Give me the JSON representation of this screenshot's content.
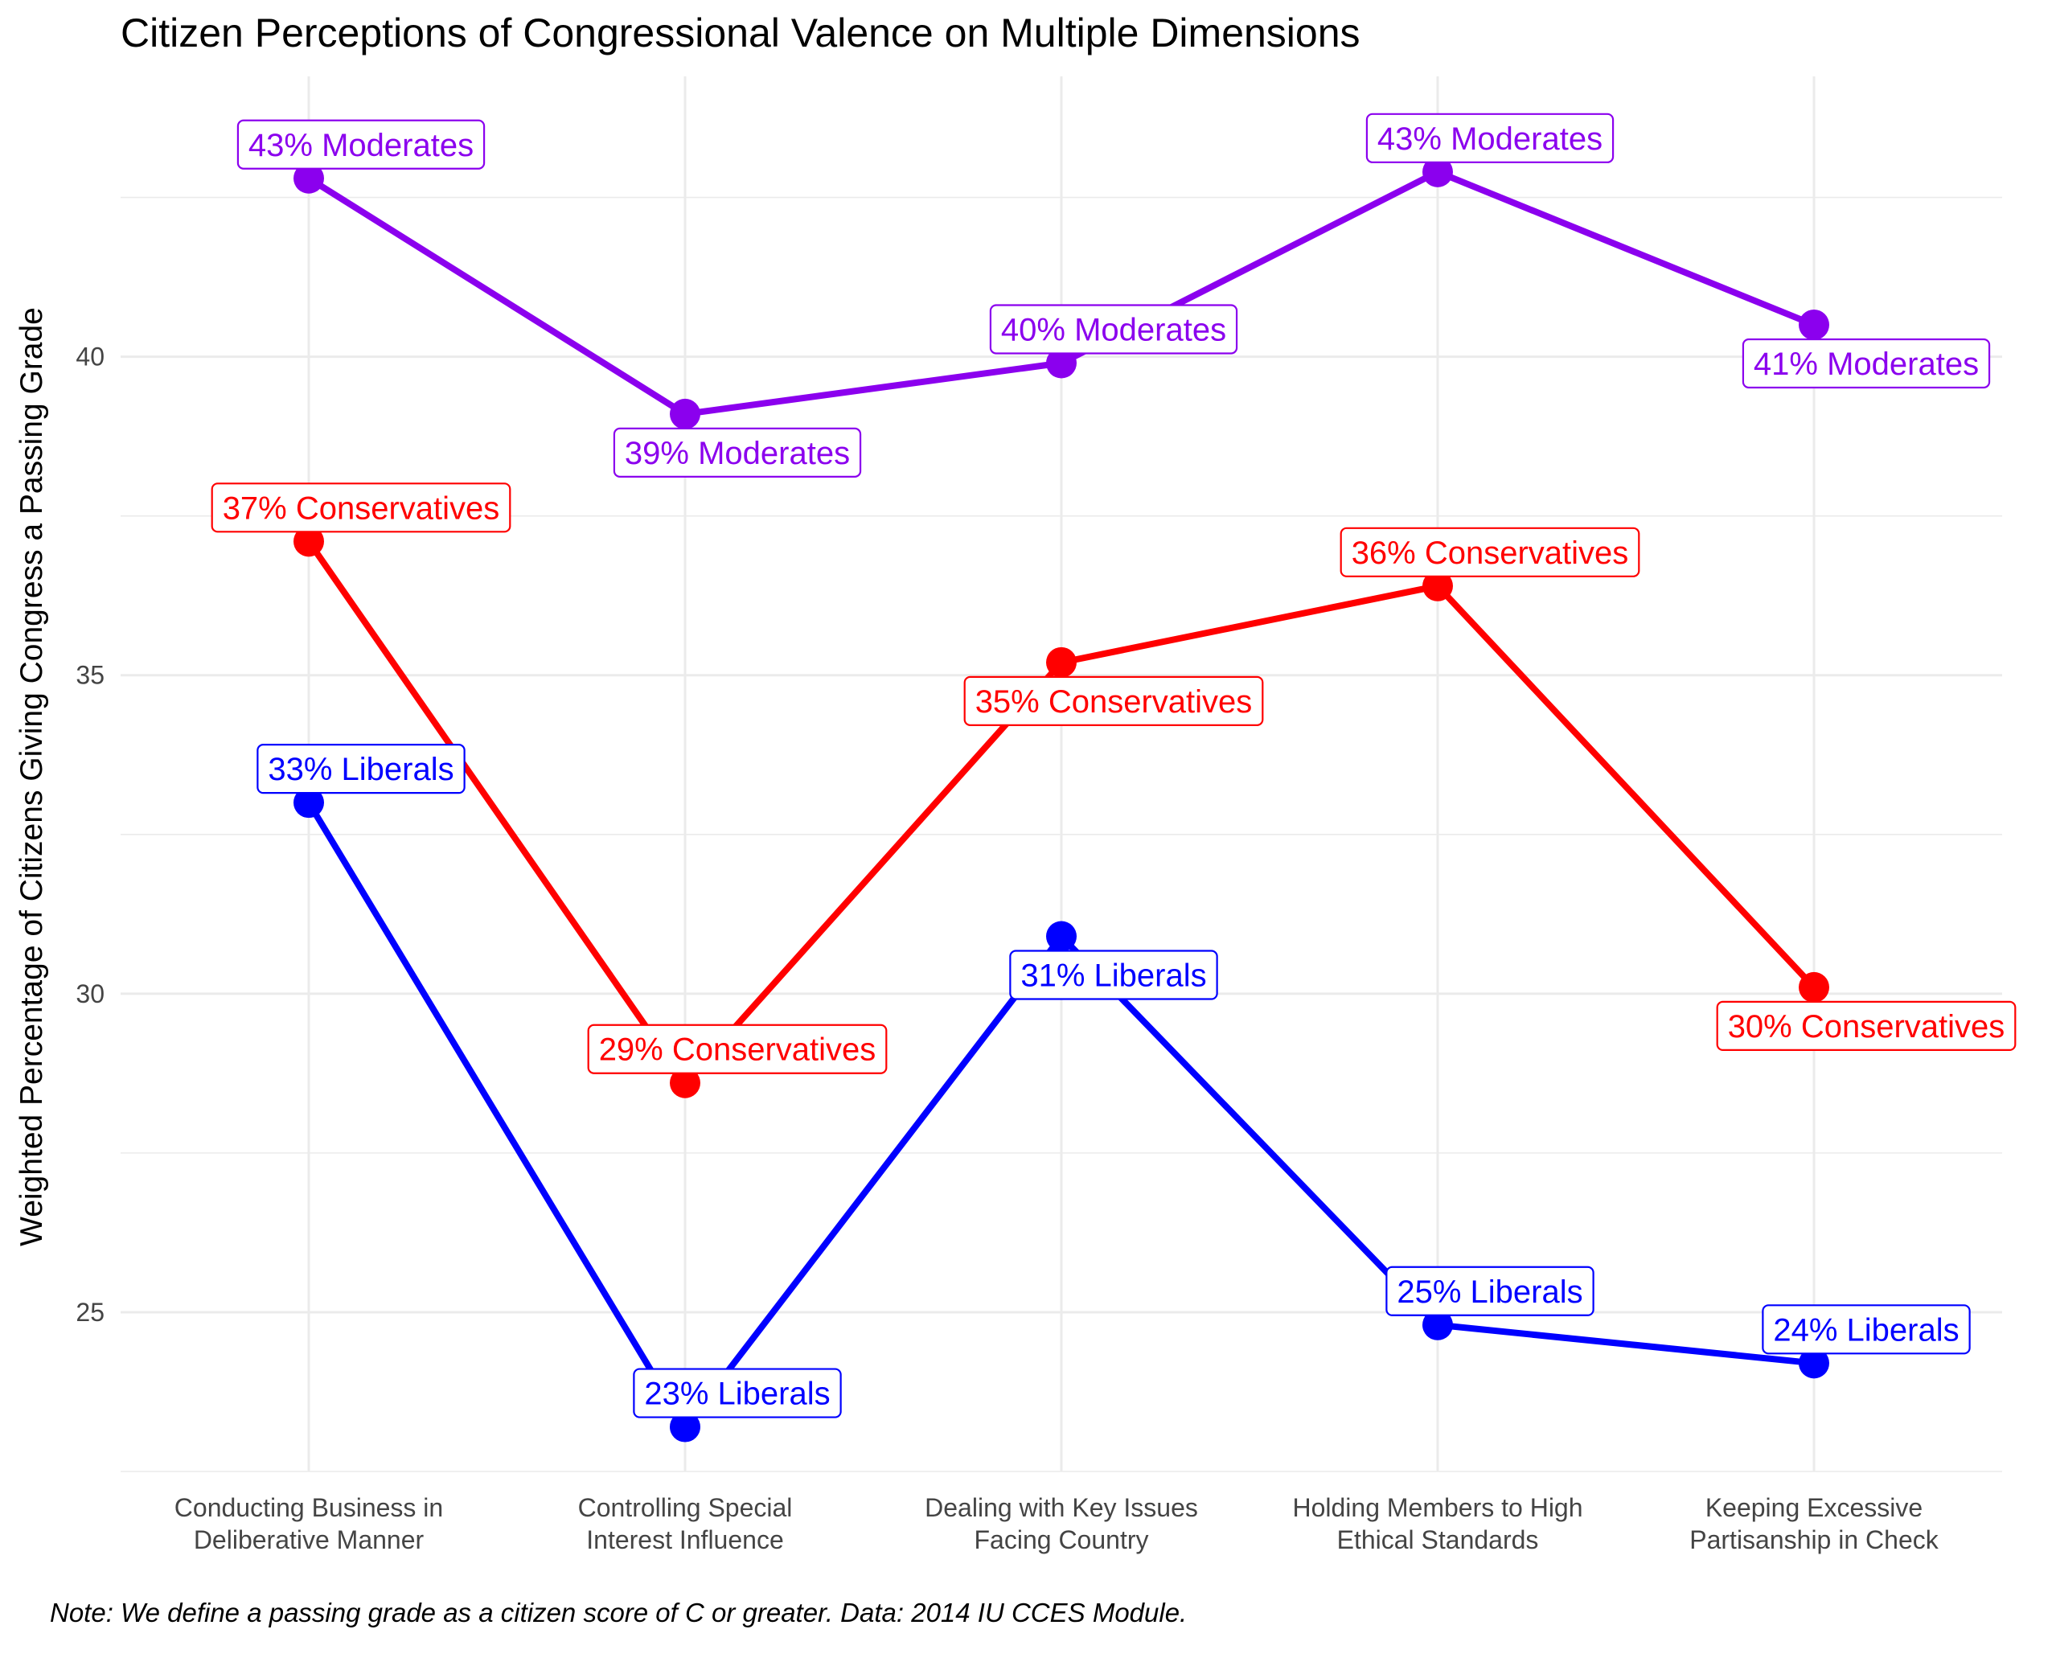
{
  "chart_data": {
    "type": "line",
    "title": "Citizen Perceptions of Congressional Valence on Multiple Dimensions",
    "ylabel": "Weighted Percentage of Citizens Giving Congress a Passing Grade",
    "xlabel": "",
    "caption": "Note: We define a passing grade as a citizen score of C or greater. Data: 2014 IU CCES Module.",
    "categories": [
      [
        "Conducting Business in",
        "Deliberative Manner"
      ],
      [
        "Controlling Special",
        "Interest Influence"
      ],
      [
        "Dealing with Key Issues",
        "Facing Country"
      ],
      [
        "Holding Members to High",
        "Ethical Standards"
      ],
      [
        "Keeping Excessive",
        "Partisanship in Check"
      ]
    ],
    "ylim": [
      22.5,
      44.4
    ],
    "yticks": [
      25,
      30,
      35,
      40
    ],
    "grid": true,
    "legend": "none",
    "series": [
      {
        "color": "#8B00EE",
        "values": [
          42.8,
          39.1,
          39.9,
          42.9,
          40.5
        ],
        "labels": [
          "43% Moderates",
          "39% Moderates",
          "40% Moderates",
          "43% Moderates",
          "41% Moderates"
        ],
        "label_pos": [
          "above",
          "below",
          "above",
          "above",
          "below"
        ]
      },
      {
        "color": "#FF0000",
        "values": [
          37.1,
          28.6,
          35.2,
          36.4,
          30.1
        ],
        "labels": [
          "37% Conservatives",
          "29% Conservatives",
          "35% Conservatives",
          "36% Conservatives",
          "30% Conservatives"
        ],
        "label_pos": [
          "above",
          "above",
          "below",
          "above",
          "below"
        ]
      },
      {
        "color": "#0000FF",
        "values": [
          33.0,
          23.2,
          30.9,
          24.8,
          24.2
        ],
        "labels": [
          "33% Liberals",
          "23% Liberals",
          "31% Liberals",
          "25% Liberals",
          "24% Liberals"
        ],
        "label_pos": [
          "above",
          "above",
          "below",
          "above",
          "above"
        ]
      }
    ]
  }
}
